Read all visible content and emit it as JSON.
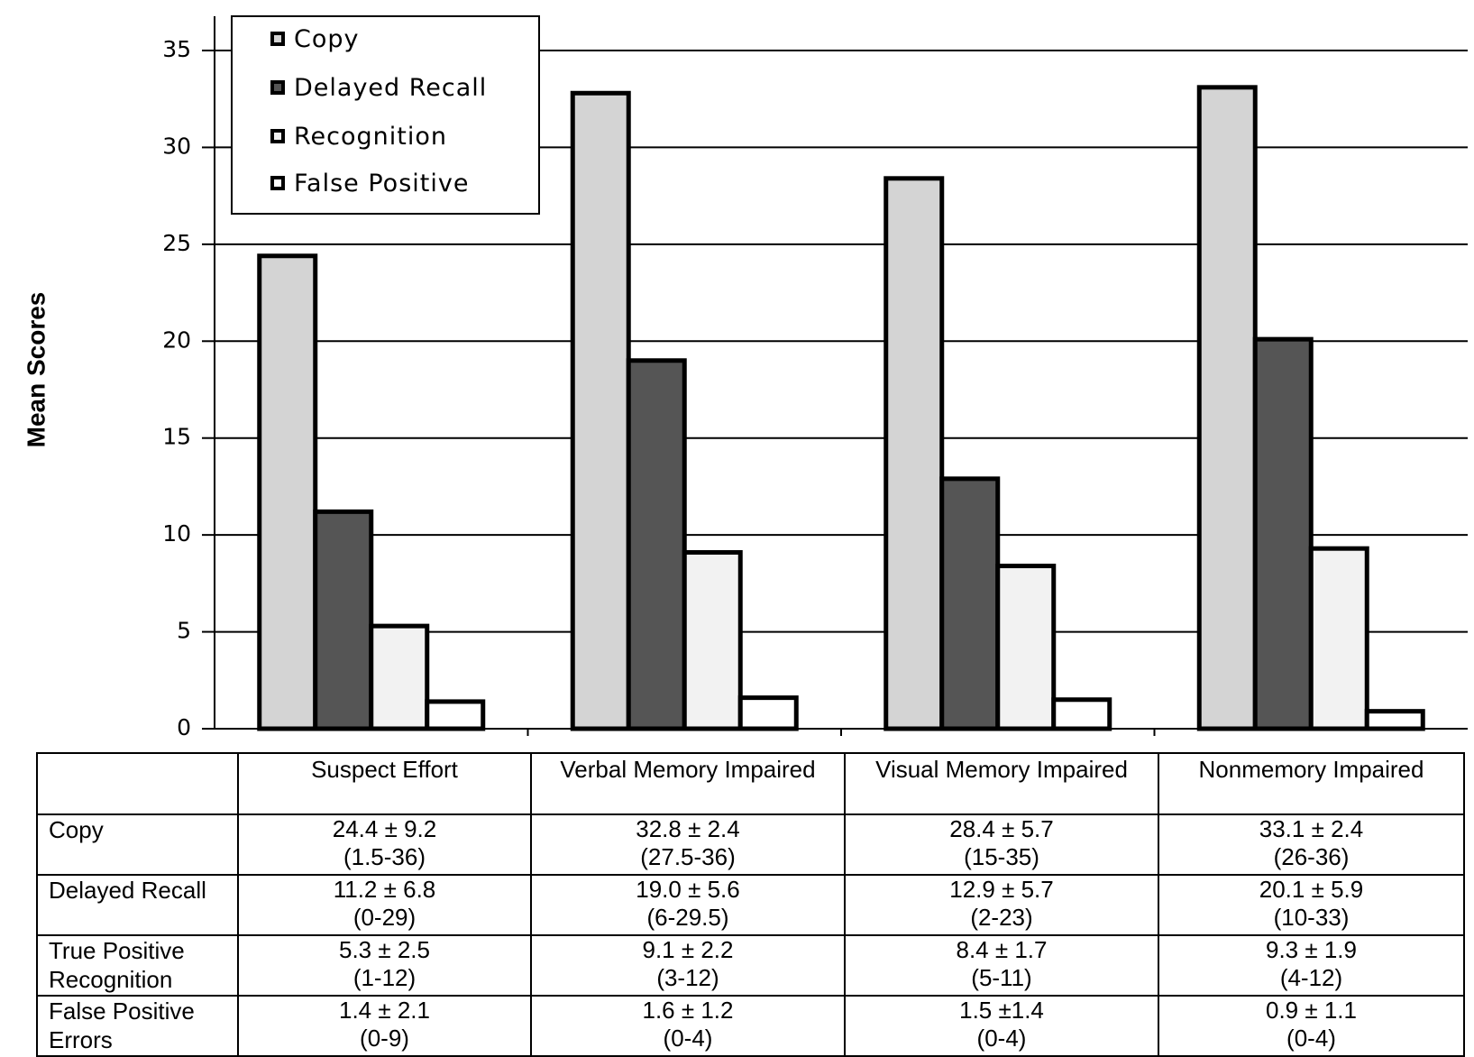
{
  "chart_data": {
    "type": "bar",
    "title": "",
    "xlabel": "",
    "ylabel": "Mean Scores",
    "ylim": [
      0,
      35
    ],
    "yticks": [
      0,
      5,
      10,
      15,
      20,
      25,
      30,
      35
    ],
    "grid": true,
    "legend_position": "top-left",
    "categories": [
      "Suspect Effort",
      "Verbal Memory Impaired",
      "Visual Memory Impaired",
      "Nonmemory Impaired"
    ],
    "series": [
      {
        "name": "Copy",
        "values": [
          24.4,
          32.8,
          28.4,
          33.1
        ],
        "color": "#d4d4d4"
      },
      {
        "name": "Delayed Recall",
        "values": [
          11.2,
          19.0,
          12.9,
          20.1
        ],
        "color": "#555555"
      },
      {
        "name": "Recognition",
        "values": [
          5.3,
          9.1,
          8.4,
          9.3
        ],
        "color": "#f2f2f2"
      },
      {
        "name": "False Positive",
        "values": [
          1.4,
          1.6,
          1.5,
          0.9
        ],
        "color": "#ffffff"
      }
    ]
  },
  "table": {
    "header": [
      "",
      "Suspect Effort",
      "Verbal Memory Impaired",
      "Visual Memory Impaired",
      "Nonmemory Impaired"
    ],
    "rows": [
      {
        "label": "Copy",
        "cells": [
          [
            "24.4 ± 9.2",
            "(1.5-36)"
          ],
          [
            "32.8 ± 2.4",
            "(27.5-36)"
          ],
          [
            "28.4 ± 5.7",
            "(15-35)"
          ],
          [
            "33.1 ± 2.4",
            "(26-36)"
          ]
        ]
      },
      {
        "label": "Delayed Recall",
        "cells": [
          [
            "11.2 ± 6.8",
            "(0-29)"
          ],
          [
            "19.0 ± 5.6",
            "(6-29.5)"
          ],
          [
            "12.9 ± 5.7",
            "(2-23)"
          ],
          [
            "20.1 ± 5.9",
            "(10-33)"
          ]
        ]
      },
      {
        "label": "True Positive Recognition",
        "cells": [
          [
            "5.3 ± 2.5",
            "(1-12)"
          ],
          [
            "9.1 ± 2.2",
            "(3-12)"
          ],
          [
            "8.4 ± 1.7",
            "(5-11)"
          ],
          [
            "9.3 ± 1.9",
            "(4-12)"
          ]
        ]
      },
      {
        "label": "False Positive Errors",
        "cells": [
          [
            "1.4 ± 2.1",
            "(0-9)"
          ],
          [
            "1.6 ± 1.2",
            "(0-4)"
          ],
          [
            "1.5 ±1.4",
            "(0-4)"
          ],
          [
            "0.9 ± 1.1",
            "(0-4)"
          ]
        ]
      }
    ]
  }
}
